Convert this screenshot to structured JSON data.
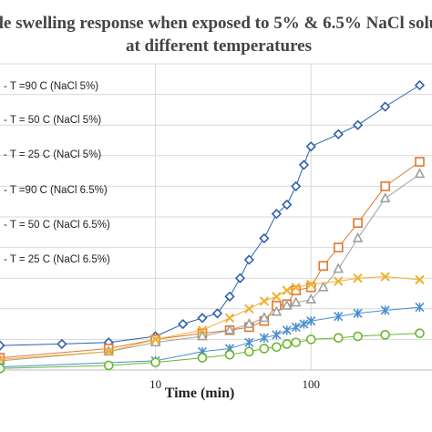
{
  "chart_data": {
    "type": "line",
    "title_lines": [
      "le swelling response when exposed to 5% & 6.5% NaCl solu",
      "at different temperatures"
    ],
    "xlabel": "Time (min)",
    "ylabel": "",
    "x_scale": "log",
    "xlim": [
      1,
      600
    ],
    "ylim": [
      0,
      100
    ],
    "x_ticks": [
      10,
      100
    ],
    "grid": true,
    "legend_position": "left",
    "series": [
      {
        "name": "T =90 C (NaCl 5%)",
        "color": "#2e5fb0",
        "marker": "diamond",
        "x": [
          1,
          2.5,
          5,
          10,
          15,
          20,
          25,
          30,
          35,
          40,
          50,
          60,
          70,
          80,
          90,
          100,
          150,
          200,
          300,
          500
        ],
        "y": [
          8,
          8.5,
          9,
          11,
          15,
          17,
          18.5,
          24,
          30,
          36,
          43,
          51,
          54,
          60,
          67,
          73,
          77,
          80,
          86,
          93
        ]
      },
      {
        "name": "T = 50 C (NaCl 5%)",
        "color": "#e0782f",
        "marker": "square",
        "x": [
          1,
          5,
          10,
          20,
          30,
          40,
          50,
          60,
          70,
          80,
          100,
          120,
          150,
          200,
          300,
          500
        ],
        "y": [
          4,
          7,
          10,
          12,
          13,
          14,
          16,
          21,
          21.5,
          26,
          27,
          34,
          40,
          48,
          60,
          68
        ]
      },
      {
        "name": "T = 25 C (NaCl 5%)",
        "color": "#a0a0a0",
        "marker": "triangle",
        "x": [
          1,
          5,
          10,
          20,
          30,
          40,
          50,
          60,
          70,
          80,
          100,
          120,
          150,
          200,
          300,
          500
        ],
        "y": [
          3,
          6,
          9,
          11,
          13,
          15,
          17,
          19,
          21,
          22,
          23,
          27,
          33,
          43,
          56,
          64
        ]
      },
      {
        "name": "T =90 C (NaCl 6.5%)",
        "color": "#f0b030",
        "marker": "x",
        "x": [
          1,
          5,
          10,
          20,
          30,
          40,
          50,
          60,
          70,
          80,
          100,
          150,
          200,
          300,
          500
        ],
        "y": [
          3.5,
          6,
          10,
          13,
          17,
          20,
          22.5,
          24,
          26,
          27,
          28,
          29,
          30,
          30.5,
          29.5
        ]
      },
      {
        "name": "T = 50 C (NaCl 6.5%)",
        "color": "#4a8ed0",
        "marker": "asterisk",
        "x": [
          1,
          10,
          20,
          30,
          40,
          50,
          60,
          70,
          80,
          90,
          100,
          150,
          200,
          300,
          500
        ],
        "y": [
          1,
          3,
          6,
          7,
          9,
          10.5,
          11.5,
          13,
          14,
          15,
          16,
          17.5,
          18.5,
          19.5,
          20.5
        ]
      },
      {
        "name": "T = 25 C (NaCl 6.5%)",
        "color": "#6ab72e",
        "marker": "circle",
        "x": [
          1,
          5,
          10,
          20,
          30,
          40,
          50,
          60,
          70,
          80,
          100,
          150,
          200,
          300,
          500
        ],
        "y": [
          0.5,
          1.5,
          2.5,
          4,
          5,
          6,
          7,
          7.5,
          8.5,
          9,
          10,
          10.5,
          11,
          11.5,
          12
        ]
      }
    ]
  }
}
